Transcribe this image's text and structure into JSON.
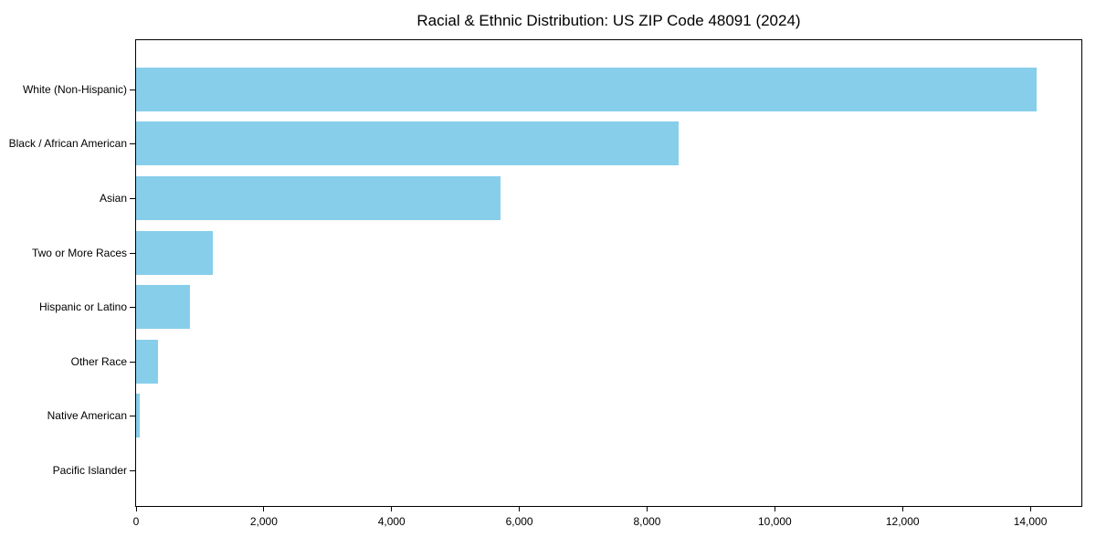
{
  "title": "Racial & Ethnic Distribution: US ZIP Code 48091 (2024)",
  "colors": {
    "bar": "#87CEEB",
    "axis": "#000000",
    "text": "#000000",
    "background": "#ffffff"
  },
  "chart_data": {
    "type": "bar",
    "orientation": "horizontal",
    "title": "Racial & Ethnic Distribution: US ZIP Code 48091 (2024)",
    "categories": [
      "White (Non-Hispanic)",
      "Black / African American",
      "Asian",
      "Two or More Races",
      "Hispanic or Latino",
      "Other Race",
      "Native American",
      "Pacific Islander"
    ],
    "values": [
      14100,
      8500,
      5700,
      1200,
      850,
      340,
      60,
      0
    ],
    "xlabel": "",
    "ylabel": "",
    "xlim": [
      0,
      14800
    ],
    "xticks": [
      0,
      2000,
      4000,
      6000,
      8000,
      10000,
      12000,
      14000
    ],
    "xtick_labels": [
      "0",
      "2,000",
      "4,000",
      "6,000",
      "8,000",
      "10,000",
      "12,000",
      "14,000"
    ],
    "bar_color": "#87CEEB",
    "grid": false,
    "legend": null
  }
}
